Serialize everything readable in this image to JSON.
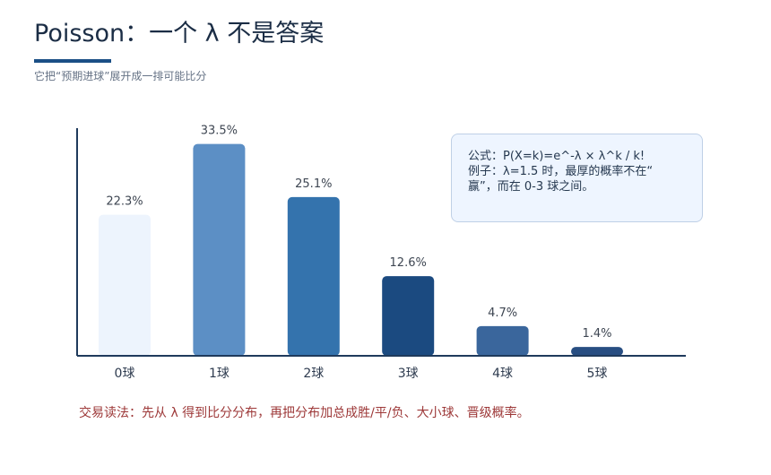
{
  "header": {
    "title": "Poisson：一个 λ 不是答案",
    "subtitle": "它把“预期进球”展开成一排可能比分"
  },
  "info_box": {
    "line1": "公式：P(X=k)=e^-λ × λ^k / k!",
    "line2": "例子：λ=1.5 时，最厚的概率不在“",
    "line3": "赢”，而在 0-3 球之间。"
  },
  "footer": {
    "note": "交易读法：先从 λ 得到比分分布，再把分布加总成胜/平/负、大小球、晋级概率。"
  },
  "colors": {
    "axis": "#1f3a5c",
    "bars": [
      "#edf4fd",
      "#5c8fc5",
      "#3473ad",
      "#1b4a80",
      "#3a669c",
      "#284e82"
    ],
    "label": "#3e4652",
    "accent": "#1b4f86"
  },
  "chart_data": {
    "type": "bar",
    "categories": [
      "0球",
      "1球",
      "2球",
      "3球",
      "4球",
      "5球"
    ],
    "values": [
      22.3,
      33.5,
      25.1,
      12.6,
      4.7,
      1.4
    ],
    "data_labels": [
      "22.3%",
      "33.5%",
      "25.1%",
      "12.6%",
      "4.7%",
      "1.4%"
    ],
    "ylim": [
      0,
      36
    ],
    "grid": false,
    "legend": "none"
  }
}
